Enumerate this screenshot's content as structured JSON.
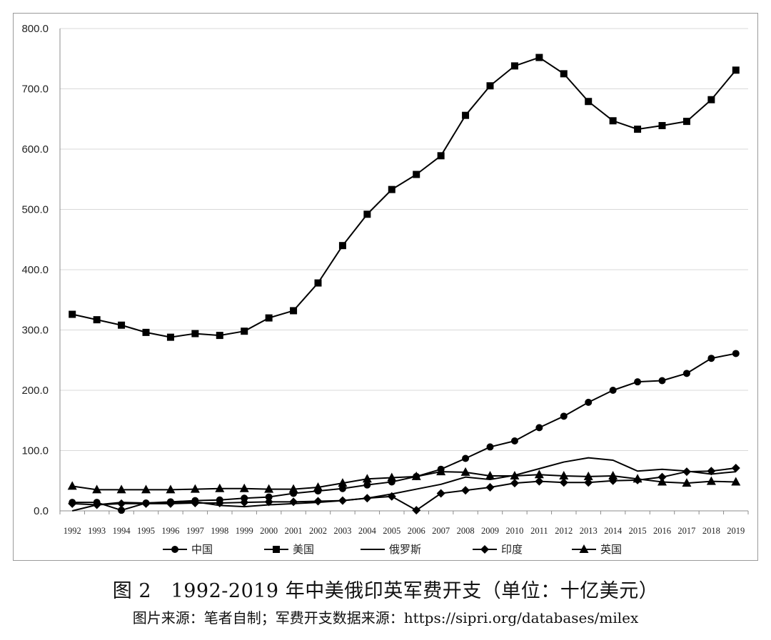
{
  "caption": "图 2　1992-2019 年中美俄印英军费开支（单位：十亿美元）",
  "source": "图片来源：笔者自制；军费开支数据来源：https://sipri.org/databases/milex",
  "chart_data": {
    "type": "line",
    "title": "",
    "xlabel": "",
    "ylabel": "",
    "ylim": [
      0,
      800
    ],
    "yticks": [
      "0.0",
      "100.0",
      "200.0",
      "300.0",
      "400.0",
      "500.0",
      "600.0",
      "700.0",
      "800.0"
    ],
    "grid": true,
    "legend_position": "bottom",
    "categories": [
      "1992",
      "1993",
      "1994",
      "1995",
      "1996",
      "1997",
      "1998",
      "1999",
      "2000",
      "2001",
      "2002",
      "2003",
      "2004",
      "2005",
      "2006",
      "2007",
      "2008",
      "2009",
      "2010",
      "2011",
      "2012",
      "2013",
      "2014",
      "2015",
      "2016",
      "2017",
      "2018",
      "2019"
    ],
    "series": [
      {
        "name": "中国",
        "marker": "circle",
        "values": [
          14,
          14,
          1,
          13,
          15,
          17,
          18,
          21,
          23,
          29,
          33,
          37,
          43,
          48,
          57,
          69,
          87,
          106,
          116,
          138,
          157,
          180,
          200,
          214,
          216,
          228,
          253,
          261
        ]
      },
      {
        "name": "美国",
        "marker": "square",
        "values": [
          326,
          317,
          308,
          296,
          288,
          294,
          291,
          298,
          320,
          332,
          378,
          440,
          492,
          533,
          558,
          589,
          656,
          705,
          738,
          752,
          725,
          679,
          647,
          633,
          639,
          646,
          682,
          731
        ]
      },
      {
        "name": "俄罗斯",
        "marker": "none",
        "values": [
          0,
          10,
          14,
          13,
          14,
          15,
          9,
          7,
          10,
          12,
          14,
          17,
          21,
          28,
          36,
          44,
          56,
          52,
          59,
          70,
          81,
          88,
          84,
          66,
          69,
          66,
          61,
          65
        ]
      },
      {
        "name": "印度",
        "marker": "diamond",
        "values": [
          12,
          10,
          12,
          12,
          12,
          13,
          13,
          14,
          15,
          15,
          16,
          17,
          21,
          24,
          1,
          29,
          34,
          39,
          46,
          49,
          47,
          47,
          50,
          51,
          56,
          65,
          66,
          71
        ]
      },
      {
        "name": "英国",
        "marker": "triangle",
        "values": [
          41,
          35,
          35,
          35,
          35,
          36,
          37,
          37,
          36,
          36,
          39,
          46,
          53,
          55,
          57,
          65,
          64,
          58,
          58,
          60,
          58,
          57,
          58,
          53,
          48,
          46,
          49,
          48
        ]
      }
    ],
    "colors": {
      "line": "#000000",
      "grid": "#d9d9d9",
      "axis": "#8c8c8c"
    }
  }
}
